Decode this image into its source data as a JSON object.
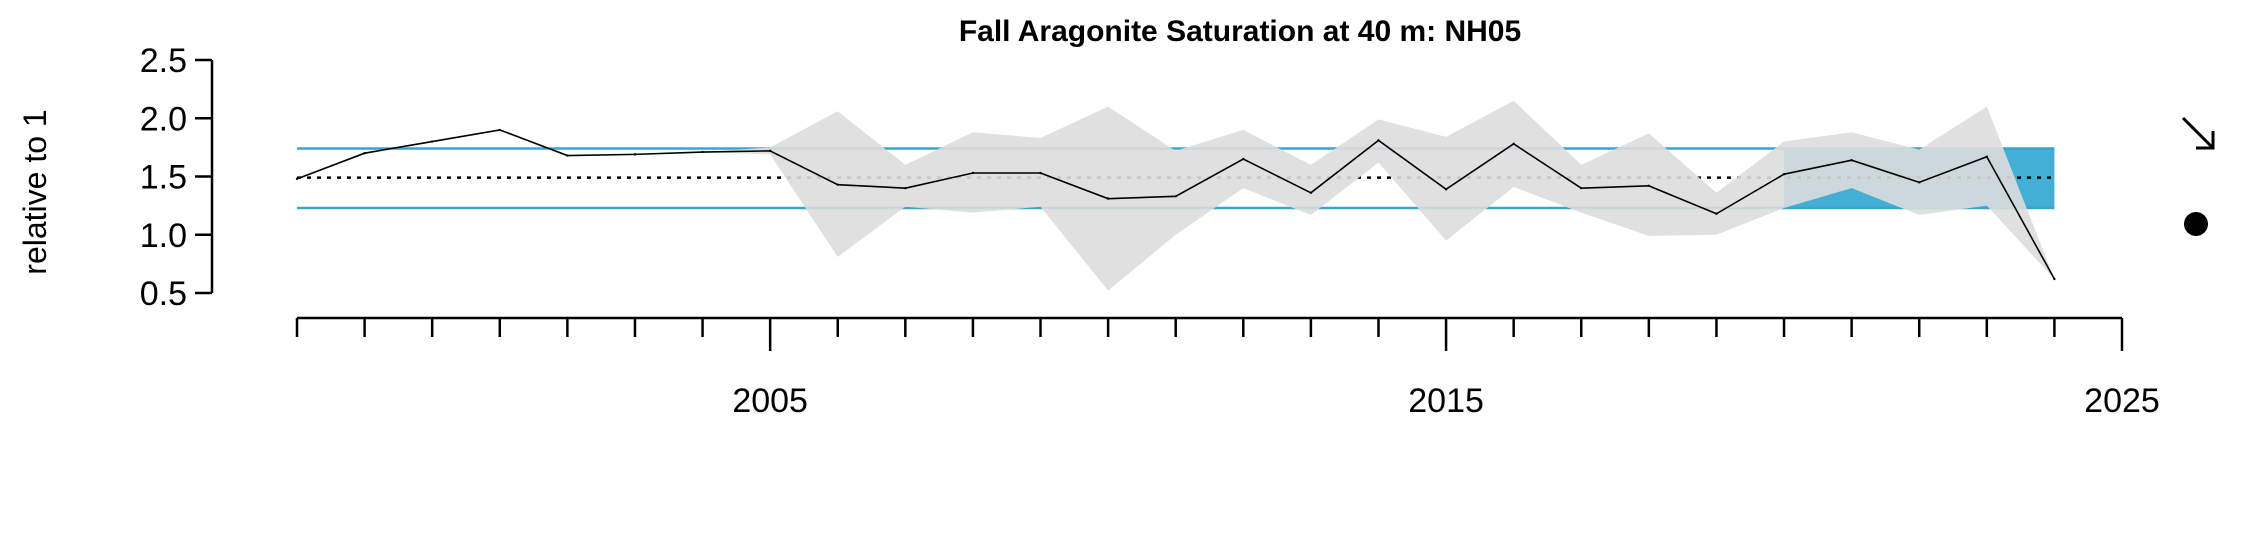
{
  "chart_data": {
    "type": "line",
    "title": "Fall Aragonite Saturation at 40 m: NH05",
    "xlabel": "",
    "ylabel": "relative to 1",
    "xlim": [
      1998,
      2025
    ],
    "ylim": [
      0.5,
      2.5
    ],
    "x_tick_labels": [
      "2005",
      "2015",
      "2025"
    ],
    "x_minor_ticks": [
      1998,
      1999,
      2000,
      2001,
      2002,
      2003,
      2004,
      2005,
      2006,
      2007,
      2008,
      2009,
      2010,
      2011,
      2012,
      2013,
      2014,
      2015,
      2016,
      2017,
      2018,
      2019,
      2020,
      2021,
      2022,
      2023,
      2024,
      2025
    ],
    "y_ticks": [
      0.5,
      1.0,
      1.5,
      2.0,
      2.5
    ],
    "y_tick_labels": [
      "0.5",
      "1.0",
      "1.5",
      "2.0",
      "2.5"
    ],
    "grid": false,
    "reference_lines": {
      "mean": 1.49,
      "upper_sd": 1.74,
      "lower_sd": 1.23
    },
    "recent_window": [
      2020,
      2024
    ],
    "series": [
      {
        "x": [
          1998,
          1999,
          2000,
          2001,
          2002,
          2003,
          2004,
          2005,
          2006,
          2007,
          2008,
          2009,
          2010,
          2011,
          2012,
          2013,
          2014,
          2015,
          2016,
          2017,
          2018,
          2019,
          2020,
          2021,
          2022,
          2023,
          2024
        ],
        "values": [
          1.48,
          1.7,
          1.8,
          1.9,
          1.68,
          1.69,
          1.71,
          1.72,
          1.43,
          1.4,
          1.53,
          1.53,
          1.31,
          1.33,
          1.65,
          1.36,
          1.81,
          1.39,
          1.78,
          1.4,
          1.42,
          1.18,
          1.52,
          1.64,
          1.45,
          1.67,
          0.62
        ],
        "upper": [
          1.48,
          1.7,
          1.8,
          1.9,
          1.68,
          1.69,
          1.71,
          1.75,
          2.06,
          1.6,
          1.88,
          1.83,
          2.1,
          1.72,
          1.9,
          1.6,
          1.99,
          1.84,
          2.15,
          1.6,
          1.87,
          1.36,
          1.8,
          1.88,
          1.73,
          2.1,
          0.62
        ],
        "lower": [
          1.48,
          1.7,
          1.8,
          1.9,
          1.68,
          1.69,
          1.71,
          1.69,
          0.81,
          1.24,
          1.19,
          1.24,
          0.52,
          1.0,
          1.4,
          1.17,
          1.62,
          0.95,
          1.41,
          1.19,
          0.99,
          1.0,
          1.23,
          1.4,
          1.17,
          1.25,
          0.62
        ]
      }
    ],
    "colors": {
      "line": "#000000",
      "ci_band": "#dddddd",
      "sd_lines": "#3aa6cf",
      "recent_box": "#43aed6",
      "mean_line": "#000000",
      "mean_line_overlap": "#9a9a9a"
    },
    "indicators": {
      "trend_icon": "arrow-down-right-icon",
      "mean_icon": "filled-circle-icon"
    }
  }
}
